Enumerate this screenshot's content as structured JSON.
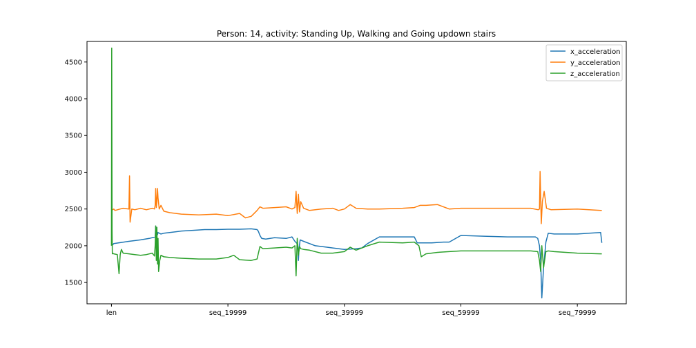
{
  "chart_data": {
    "type": "line",
    "title": "Person: 14, activity: Standing Up, Walking and Going updown stairs",
    "xlabel": "",
    "ylabel": "",
    "xlim": [
      -4200,
      88400
    ],
    "ylim": [
      1210,
      4780
    ],
    "x_ticks": [
      {
        "label": "len",
        "value": 0
      },
      {
        "label": "seq_19999",
        "value": 20000
      },
      {
        "label": "seq_39999",
        "value": 40000
      },
      {
        "label": "seq_59999",
        "value": 60000
      },
      {
        "label": "seq_79999",
        "value": 80000
      }
    ],
    "y_ticks": [
      1500,
      2000,
      2500,
      3000,
      3500,
      4000,
      4500
    ],
    "legend_position": "top-right",
    "grid": false,
    "series": [
      {
        "name": "x_acceleration",
        "color": "#1f77b4",
        "x": [
          0,
          200,
          400,
          3000,
          5000,
          6500,
          7500,
          7600,
          7700,
          7800,
          7900,
          8000,
          8500,
          9000,
          10000,
          12000,
          14000,
          16000,
          18000,
          20000,
          22000,
          24000,
          25000,
          25200,
          25500,
          25800,
          26500,
          28000,
          30000,
          31000,
          31500,
          32000,
          32100,
          32200,
          32400,
          33000,
          35000,
          37000,
          38000,
          40000,
          42000,
          43000,
          44000,
          46000,
          48000,
          52000,
          52500,
          53500,
          55000,
          57000,
          58000,
          60000,
          64000,
          68000,
          70000,
          72000,
          72800,
          73200,
          73500,
          73700,
          73900,
          74200,
          74600,
          75000,
          76000,
          78000,
          80000,
          82000,
          84000,
          84200
        ],
        "y": [
          2010,
          2010,
          2030,
          2060,
          2080,
          2100,
          2120,
          2270,
          2140,
          2200,
          2150,
          2180,
          2160,
          2170,
          2180,
          2200,
          2210,
          2220,
          2220,
          2225,
          2225,
          2230,
          2220,
          2200,
          2140,
          2100,
          2090,
          2110,
          2100,
          2120,
          2060,
          2020,
          1800,
          1950,
          2080,
          2060,
          2000,
          1980,
          1970,
          1950,
          1960,
          1970,
          2030,
          2120,
          2120,
          2120,
          2040,
          2040,
          2040,
          2050,
          2050,
          2140,
          2130,
          2120,
          2120,
          2120,
          2120,
          2100,
          2000,
          1800,
          1290,
          1700,
          2050,
          2170,
          2160,
          2160,
          2160,
          2170,
          2180,
          2040
        ]
      },
      {
        "name": "y_acceleration",
        "color": "#ff7f0e",
        "x": [
          0,
          200,
          400,
          600,
          1500,
          2000,
          3000,
          3100,
          3200,
          3500,
          4000,
          5000,
          6000,
          7000,
          7400,
          7500,
          7600,
          7700,
          7800,
          7900,
          8000,
          8200,
          8500,
          9000,
          10000,
          12000,
          15000,
          18000,
          20000,
          22000,
          23000,
          24000,
          25000,
          25500,
          26000,
          28000,
          30000,
          31000,
          31500,
          31700,
          31900,
          32100,
          32300,
          32500,
          33000,
          34000,
          36000,
          38000,
          39000,
          40000,
          41000,
          42000,
          44000,
          46000,
          50000,
          52000,
          53000,
          54000,
          56000,
          58000,
          60000,
          64000,
          68000,
          72000,
          73300,
          73500,
          73600,
          73800,
          74000,
          74300,
          74700,
          75500,
          80000,
          84000,
          84200
        ],
        "y": [
          2490,
          2490,
          2500,
          2480,
          2500,
          2510,
          2500,
          2950,
          2320,
          2500,
          2490,
          2510,
          2490,
          2510,
          2500,
          2550,
          2780,
          2520,
          2600,
          2780,
          2650,
          2500,
          2550,
          2470,
          2450,
          2430,
          2420,
          2430,
          2410,
          2440,
          2380,
          2400,
          2480,
          2530,
          2510,
          2520,
          2530,
          2500,
          2520,
          2740,
          2440,
          2700,
          2460,
          2600,
          2510,
          2480,
          2500,
          2510,
          2480,
          2500,
          2560,
          2510,
          2500,
          2500,
          2510,
          2520,
          2550,
          2550,
          2560,
          2500,
          2510,
          2510,
          2510,
          2510,
          2490,
          2500,
          3010,
          2300,
          2600,
          2740,
          2510,
          2490,
          2500,
          2480,
          2480
        ]
      },
      {
        "name": "z_acceleration",
        "color": "#2ca02c",
        "x": [
          0,
          50,
          100,
          150,
          200,
          400,
          1000,
          1300,
          1500,
          1700,
          2000,
          3000,
          4000,
          5000,
          6000,
          7000,
          7400,
          7500,
          7600,
          7700,
          7800,
          7900,
          8000,
          8100,
          8300,
          8500,
          9000,
          10000,
          12000,
          15000,
          18000,
          20000,
          21000,
          22000,
          24000,
          25000,
          25500,
          26000,
          28000,
          30000,
          31000,
          31500,
          31700,
          31900,
          32100,
          32300,
          32500,
          33000,
          34000,
          36000,
          38000,
          40000,
          41000,
          42000,
          44000,
          46000,
          50000,
          52000,
          52800,
          53200,
          54000,
          56000,
          58000,
          60000,
          64000,
          68000,
          72000,
          73200,
          73500,
          73700,
          73900,
          74200,
          74600,
          75000,
          76000,
          78000,
          80000,
          84000,
          84200
        ],
        "y": [
          2000,
          4690,
          2200,
          1890,
          1900,
          1890,
          1880,
          1620,
          1880,
          1950,
          1900,
          1890,
          1880,
          1870,
          1880,
          1900,
          1860,
          2000,
          2270,
          1800,
          2250,
          1750,
          2100,
          1650,
          1800,
          1870,
          1850,
          1840,
          1830,
          1820,
          1820,
          1840,
          1870,
          1810,
          1800,
          1820,
          1990,
          1960,
          1970,
          1980,
          1970,
          2000,
          1590,
          2100,
          1870,
          1990,
          1960,
          1950,
          1940,
          1900,
          1900,
          1920,
          1980,
          1940,
          2000,
          2050,
          2040,
          2050,
          2000,
          1850,
          1890,
          1910,
          1920,
          1930,
          1930,
          1930,
          1930,
          1920,
          1800,
          1650,
          2000,
          1700,
          1920,
          1930,
          1920,
          1910,
          1900,
          1890,
          1890
        ]
      }
    ]
  }
}
